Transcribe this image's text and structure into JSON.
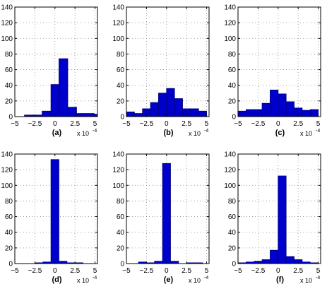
{
  "chart_data": [
    {
      "type": "bar",
      "title": "(a)",
      "x_multiplier": "x 10",
      "x_exponent": "-4",
      "xlim": [
        -5,
        5.3
      ],
      "ylim": [
        0,
        140
      ],
      "xticks": [
        "−5",
        "−2.5",
        "0",
        "2.5",
        "5"
      ],
      "yticks": [
        "0",
        "20",
        "40",
        "60",
        "80",
        "100",
        "120",
        "140"
      ],
      "grid": true,
      "bin_edges": [
        -5.0,
        -3.8,
        -2.7,
        -1.6,
        -0.5,
        0.5,
        1.6,
        2.7,
        3.8,
        4.9,
        5.3
      ],
      "values": [
        0,
        2,
        2,
        7,
        41,
        74,
        12,
        4,
        4,
        3
      ]
    },
    {
      "type": "bar",
      "title": "(b)",
      "x_multiplier": "x 10",
      "x_exponent": "-4",
      "xlim": [
        -5,
        5.3
      ],
      "ylim": [
        0,
        140
      ],
      "xticks": [
        "−5",
        "−2.5",
        "0",
        "2.5",
        "5"
      ],
      "yticks": [
        "0",
        "20",
        "40",
        "60",
        "80",
        "100",
        "120",
        "140"
      ],
      "grid": true,
      "bin_edges": [
        -5.0,
        -4.0,
        -3.0,
        -2.0,
        -1.0,
        0.0,
        1.0,
        2.0,
        3.0,
        4.0,
        5.0
      ],
      "values": [
        6,
        4,
        10,
        18,
        30,
        36,
        23,
        10,
        10,
        7
      ]
    },
    {
      "type": "bar",
      "title": "(c)",
      "x_multiplier": "x 10",
      "x_exponent": "-4",
      "xlim": [
        -5,
        5.3
      ],
      "ylim": [
        0,
        140
      ],
      "xticks": [
        "−5",
        "−2.5",
        "0",
        "2.5",
        "5"
      ],
      "yticks": [
        "0",
        "20",
        "40",
        "60",
        "80",
        "100",
        "120",
        "140"
      ],
      "grid": true,
      "bin_edges": [
        -5.0,
        -4.0,
        -3.0,
        -2.0,
        -1.0,
        0.0,
        1.0,
        2.0,
        3.0,
        4.0,
        5.0
      ],
      "values": [
        7,
        9,
        9,
        17,
        34,
        29,
        19,
        11,
        8,
        9
      ]
    },
    {
      "type": "bar",
      "title": "(d)",
      "x_multiplier": "x 10",
      "x_exponent": "-4",
      "xlim": [
        -5,
        5.3
      ],
      "ylim": [
        0,
        140
      ],
      "xticks": [
        "−5",
        "−2.5",
        "0",
        "2.5",
        "5"
      ],
      "yticks": [
        "0",
        "20",
        "40",
        "60",
        "80",
        "100",
        "120",
        "140"
      ],
      "grid": true,
      "bin_edges": [
        -4.5,
        -3.5,
        -2.5,
        -1.5,
        -0.5,
        0.5,
        1.5,
        2.5,
        3.5,
        4.5
      ],
      "values": [
        0,
        0,
        1,
        2,
        133,
        3,
        1,
        1,
        0
      ]
    },
    {
      "type": "bar",
      "title": "(e)",
      "x_multiplier": "x 10",
      "x_exponent": "-4",
      "xlim": [
        -5,
        5.3
      ],
      "ylim": [
        0,
        140
      ],
      "xticks": [
        "−5",
        "−2.5",
        "0",
        "2.5",
        "5"
      ],
      "yticks": [
        "0",
        "20",
        "40",
        "60",
        "80",
        "100",
        "120",
        "140"
      ],
      "grid": true,
      "bin_edges": [
        -4.5,
        -3.5,
        -2.5,
        -1.5,
        -0.5,
        0.5,
        1.5,
        2.5,
        3.5,
        4.5
      ],
      "values": [
        0,
        2,
        1,
        3,
        128,
        3,
        0,
        1,
        1
      ]
    },
    {
      "type": "bar",
      "title": "(f)",
      "x_multiplier": "x 10",
      "x_exponent": "-4",
      "xlim": [
        -5,
        5.3
      ],
      "ylim": [
        0,
        140
      ],
      "xticks": [
        "−5",
        "−2.5",
        "0",
        "2.5",
        "5"
      ],
      "yticks": [
        "0",
        "20",
        "40",
        "60",
        "80",
        "100",
        "120",
        "140"
      ],
      "grid": true,
      "bin_edges": [
        -5.0,
        -4.0,
        -3.0,
        -2.0,
        -1.0,
        0.0,
        1.0,
        2.0,
        3.0,
        4.0,
        5.0
      ],
      "values": [
        1,
        2,
        3,
        5,
        17,
        112,
        9,
        5,
        2,
        1
      ]
    }
  ],
  "colors": {
    "bar_fill": "#0000cc",
    "bar_stroke": "#00007a",
    "axis": "#000000",
    "grid": "#8a8a8a"
  }
}
